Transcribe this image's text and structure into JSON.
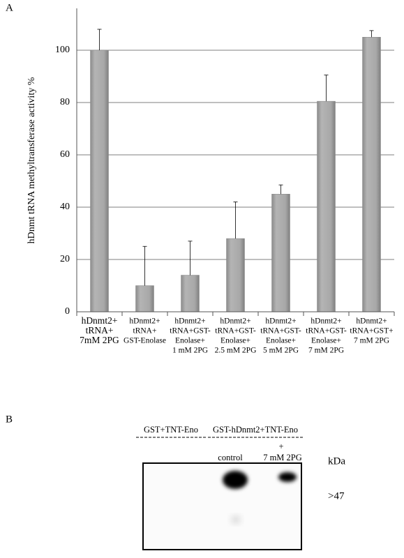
{
  "panel_labels": [
    "A",
    "B"
  ],
  "chart_data": {
    "type": "bar",
    "y_label": "hDnmt tRNA methyltransferase activity %",
    "categories": [
      [
        "hDnmt2+",
        "tRNA+",
        "7mM 2PG"
      ],
      [
        "hDnmt2+",
        "tRNA+",
        "GST-Enolase"
      ],
      [
        "hDnmt2+",
        "tRNA+GST-",
        "Enolase+",
        "1 mM 2PG"
      ],
      [
        "hDnmt2+",
        "tRNA+GST-",
        "Enolase+",
        "2.5 mM 2PG"
      ],
      [
        "hDnmt2+",
        "tRNA+GST-",
        "Enolase+",
        "5 mM 2PG"
      ],
      [
        "hDnmt2+",
        "tRNA+GST-",
        "Enolase+",
        "7 mM 2PG"
      ],
      [
        "hDnmt2+",
        "tRNA+GST+",
        "7 mM 2PG"
      ]
    ],
    "values": [
      100,
      10,
      14,
      28,
      45,
      80.5,
      105
    ],
    "errors": [
      8,
      15,
      13,
      14,
      3.5,
      10,
      2.5
    ],
    "color": "#a8a8a8",
    "ylim": [
      0,
      116
    ],
    "yticks": [
      0,
      20,
      40,
      60,
      80,
      100
    ],
    "grid": true
  },
  "blot": {
    "group_1": "GST+TNT-Eno",
    "group_2": "GST-hDnmt2+TNT-Eno",
    "lane_1": "control",
    "lane_2_plus": "+",
    "lane_2": "7 mM 2PG",
    "unit": "kDa",
    "marker": ">47"
  }
}
